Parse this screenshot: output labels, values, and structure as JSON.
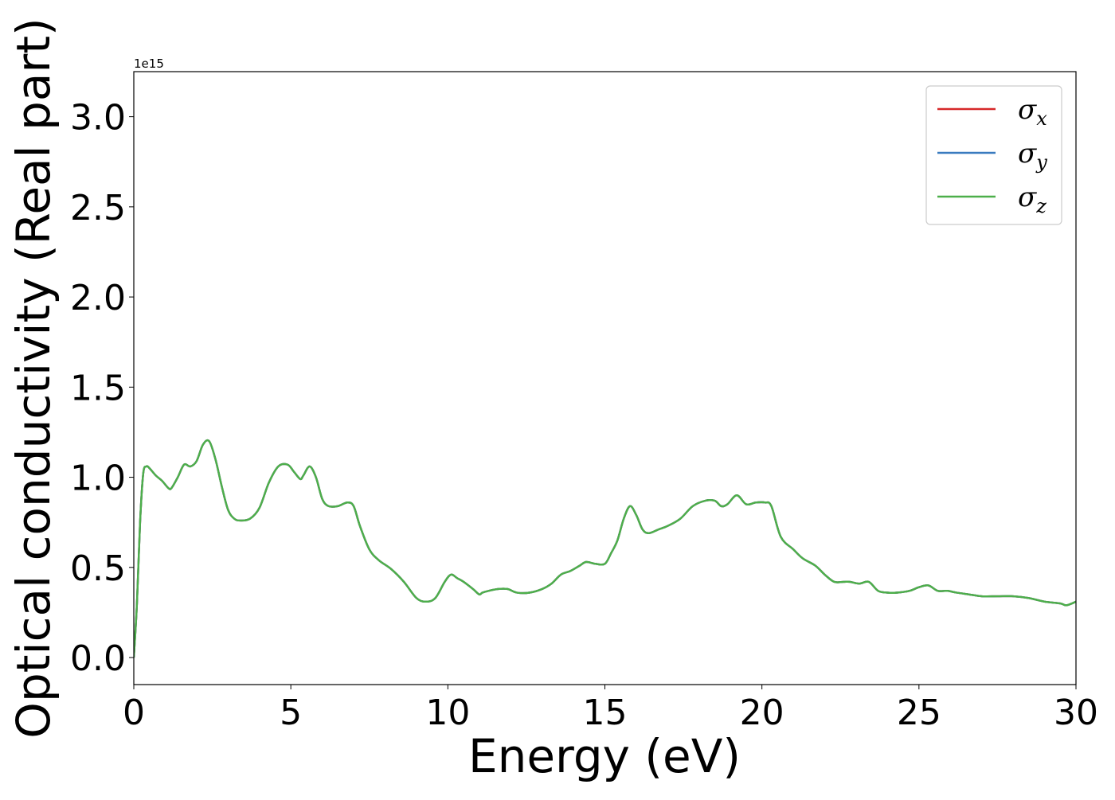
{
  "chart_data": {
    "type": "line",
    "xlabel": "Energy (eV)",
    "ylabel": "Optical conductivity (Real part)",
    "y_offset_label": "1e15",
    "xlim": [
      0,
      30
    ],
    "ylim": [
      -0.15,
      3.25
    ],
    "xticks": [
      0,
      5,
      10,
      15,
      20,
      25,
      30
    ],
    "xtick_labels": [
      "0",
      "5",
      "10",
      "15",
      "20",
      "25",
      "30"
    ],
    "yticks": [
      0.0,
      0.5,
      1.0,
      1.5,
      2.0,
      2.5,
      3.0
    ],
    "ytick_labels": [
      "0.0",
      "0.5",
      "1.0",
      "1.5",
      "2.0",
      "2.5",
      "3.0"
    ],
    "grid": false,
    "legend_position": "top-right",
    "x": [
      0,
      0.1,
      0.2,
      0.3,
      0.4,
      0.5,
      0.7,
      0.9,
      1.1,
      1.2,
      1.4,
      1.6,
      1.8,
      2.0,
      2.2,
      2.4,
      2.6,
      2.8,
      3.0,
      3.2,
      3.4,
      3.7,
      4.0,
      4.3,
      4.6,
      4.9,
      5.1,
      5.3,
      5.4,
      5.6,
      5.8,
      6.0,
      6.2,
      6.5,
      6.8,
      7.0,
      7.2,
      7.5,
      7.8,
      8.2,
      8.6,
      9.0,
      9.3,
      9.6,
      9.9,
      10.1,
      10.3,
      10.5,
      10.8,
      11.0,
      11.1,
      11.3,
      11.6,
      11.9,
      12.2,
      12.6,
      13.0,
      13.3,
      13.6,
      13.9,
      14.2,
      14.4,
      14.7,
      15.0,
      15.2,
      15.4,
      15.6,
      15.8,
      16.0,
      16.2,
      16.4,
      16.7,
      17.0,
      17.4,
      17.8,
      18.2,
      18.5,
      18.7,
      18.9,
      19.2,
      19.5,
      19.8,
      20.1,
      20.3,
      20.6,
      21.0,
      21.3,
      21.7,
      22.0,
      22.3,
      22.6,
      22.8,
      23.1,
      23.4,
      23.7,
      24.0,
      24.3,
      24.7,
      25.0,
      25.3,
      25.6,
      25.9,
      26.2,
      26.6,
      27.0,
      27.5,
      28.0,
      28.5,
      29.0,
      29.5,
      29.7,
      30.0
    ],
    "series": [
      {
        "name": "σx",
        "color": "#d62728",
        "values": [
          0.0,
          0.3,
          0.75,
          1.02,
          1.06,
          1.05,
          1.01,
          0.98,
          0.94,
          0.94,
          1.0,
          1.07,
          1.06,
          1.09,
          1.18,
          1.2,
          1.1,
          0.95,
          0.82,
          0.77,
          0.76,
          0.77,
          0.83,
          0.97,
          1.06,
          1.07,
          1.03,
          0.99,
          1.01,
          1.06,
          1.0,
          0.88,
          0.84,
          0.84,
          0.86,
          0.84,
          0.73,
          0.6,
          0.54,
          0.49,
          0.42,
          0.33,
          0.31,
          0.33,
          0.42,
          0.46,
          0.44,
          0.42,
          0.38,
          0.35,
          0.36,
          0.37,
          0.38,
          0.38,
          0.36,
          0.36,
          0.38,
          0.41,
          0.46,
          0.48,
          0.51,
          0.53,
          0.52,
          0.52,
          0.58,
          0.65,
          0.77,
          0.84,
          0.79,
          0.71,
          0.69,
          0.71,
          0.73,
          0.77,
          0.84,
          0.87,
          0.87,
          0.84,
          0.85,
          0.9,
          0.85,
          0.86,
          0.86,
          0.84,
          0.67,
          0.6,
          0.55,
          0.51,
          0.46,
          0.42,
          0.42,
          0.42,
          0.41,
          0.42,
          0.37,
          0.36,
          0.36,
          0.37,
          0.39,
          0.4,
          0.37,
          0.37,
          0.36,
          0.35,
          0.34,
          0.34,
          0.34,
          0.33,
          0.31,
          0.3,
          0.29,
          0.31
        ]
      },
      {
        "name": "σy",
        "color": "#3a7bbf",
        "values": [
          0.0,
          0.3,
          0.75,
          1.02,
          1.06,
          1.05,
          1.01,
          0.98,
          0.94,
          0.94,
          1.0,
          1.07,
          1.06,
          1.09,
          1.18,
          1.2,
          1.1,
          0.95,
          0.82,
          0.77,
          0.76,
          0.77,
          0.83,
          0.97,
          1.06,
          1.07,
          1.03,
          0.99,
          1.01,
          1.06,
          1.0,
          0.88,
          0.84,
          0.84,
          0.86,
          0.84,
          0.73,
          0.6,
          0.54,
          0.49,
          0.42,
          0.33,
          0.31,
          0.33,
          0.42,
          0.46,
          0.44,
          0.42,
          0.38,
          0.35,
          0.36,
          0.37,
          0.38,
          0.38,
          0.36,
          0.36,
          0.38,
          0.41,
          0.46,
          0.48,
          0.51,
          0.53,
          0.52,
          0.52,
          0.58,
          0.65,
          0.77,
          0.84,
          0.79,
          0.71,
          0.69,
          0.71,
          0.73,
          0.77,
          0.84,
          0.87,
          0.87,
          0.84,
          0.85,
          0.9,
          0.85,
          0.86,
          0.86,
          0.84,
          0.67,
          0.6,
          0.55,
          0.51,
          0.46,
          0.42,
          0.42,
          0.42,
          0.41,
          0.42,
          0.37,
          0.36,
          0.36,
          0.37,
          0.39,
          0.4,
          0.37,
          0.37,
          0.36,
          0.35,
          0.34,
          0.34,
          0.34,
          0.33,
          0.31,
          0.3,
          0.29,
          0.31
        ]
      },
      {
        "name": "σz",
        "color": "#4daf4a",
        "values": [
          0.0,
          0.3,
          0.75,
          1.02,
          1.06,
          1.05,
          1.01,
          0.98,
          0.94,
          0.94,
          1.0,
          1.07,
          1.06,
          1.09,
          1.18,
          1.2,
          1.1,
          0.95,
          0.82,
          0.77,
          0.76,
          0.77,
          0.83,
          0.97,
          1.06,
          1.07,
          1.03,
          0.99,
          1.01,
          1.06,
          1.0,
          0.88,
          0.84,
          0.84,
          0.86,
          0.84,
          0.73,
          0.6,
          0.54,
          0.49,
          0.42,
          0.33,
          0.31,
          0.33,
          0.42,
          0.46,
          0.44,
          0.42,
          0.38,
          0.35,
          0.36,
          0.37,
          0.38,
          0.38,
          0.36,
          0.36,
          0.38,
          0.41,
          0.46,
          0.48,
          0.51,
          0.53,
          0.52,
          0.52,
          0.58,
          0.65,
          0.77,
          0.84,
          0.79,
          0.71,
          0.69,
          0.71,
          0.73,
          0.77,
          0.84,
          0.87,
          0.87,
          0.84,
          0.85,
          0.9,
          0.85,
          0.86,
          0.86,
          0.84,
          0.67,
          0.6,
          0.55,
          0.51,
          0.46,
          0.42,
          0.42,
          0.42,
          0.41,
          0.42,
          0.37,
          0.36,
          0.36,
          0.37,
          0.39,
          0.4,
          0.37,
          0.37,
          0.36,
          0.35,
          0.34,
          0.34,
          0.34,
          0.33,
          0.31,
          0.3,
          0.29,
          0.31
        ]
      }
    ],
    "legend": [
      {
        "symbol": "σ",
        "sub": "x",
        "color": "#d62728"
      },
      {
        "symbol": "σ",
        "sub": "y",
        "color": "#3a7bbf"
      },
      {
        "symbol": "σ",
        "sub": "z",
        "color": "#4daf4a"
      }
    ]
  }
}
